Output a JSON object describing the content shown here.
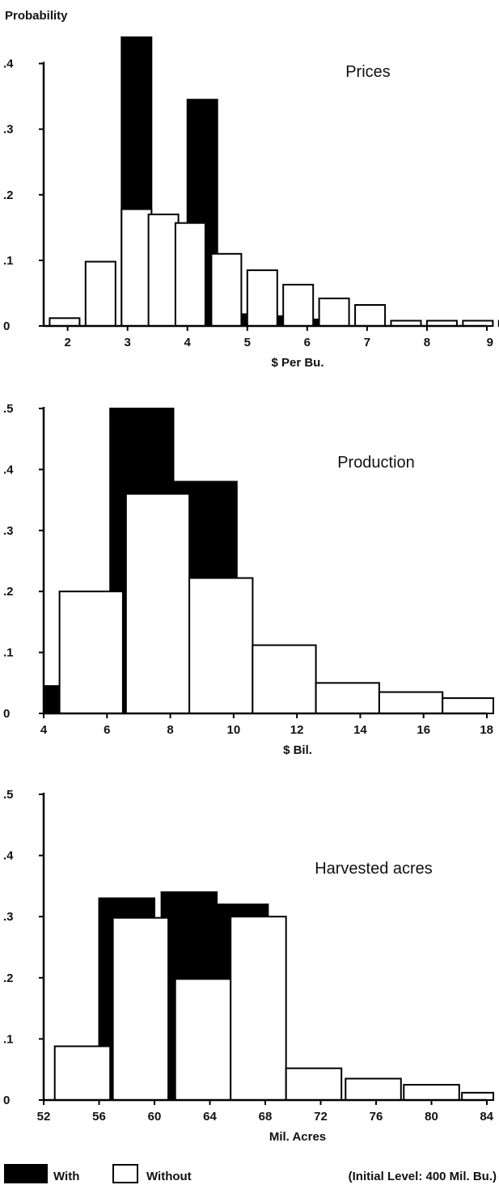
{
  "figure": {
    "ylabel": "Probability",
    "legend": {
      "with_label": "With",
      "without_label": "Without",
      "note": "(Initial Level: 400 Mil. Bu.)",
      "placement": "bottom-left"
    },
    "colors": {
      "with": "#000000",
      "without": "#ffffff",
      "outline": "#000000"
    }
  },
  "chart_data": [
    {
      "type": "bar",
      "title": "Prices",
      "xlabel": "$ Per Bu.",
      "xlim": [
        1.6,
        9
      ],
      "ylim": [
        0,
        0.45
      ],
      "xticks": [
        2,
        3,
        4,
        5,
        6,
        7,
        8,
        9
      ],
      "xtick_labels": [
        "2",
        "3",
        "4",
        "5",
        "6",
        "7",
        "8",
        "9"
      ],
      "yticks": [
        0,
        0.1,
        0.2,
        0.3,
        0.4
      ],
      "ytick_labels": [
        "0",
        ".1",
        ".2",
        ".3",
        ".4"
      ],
      "bin_width": 0.5,
      "series": [
        {
          "name": "With",
          "bins": [
            [
              2.9,
              0.44
            ],
            [
              3.5,
              0.155
            ],
            [
              4.0,
              0.345
            ],
            [
              4.6,
              0.018
            ],
            [
              5.2,
              0.015
            ],
            [
              5.8,
              0.01
            ]
          ]
        },
        {
          "name": "Without",
          "bins": [
            [
              1.7,
              0.012
            ],
            [
              2.3,
              0.098
            ],
            [
              2.9,
              0.178
            ],
            [
              3.35,
              0.17
            ],
            [
              3.8,
              0.157
            ],
            [
              4.4,
              0.11
            ],
            [
              5.0,
              0.085
            ],
            [
              5.6,
              0.063
            ],
            [
              6.2,
              0.042
            ],
            [
              6.8,
              0.032
            ],
            [
              7.4,
              0.008
            ],
            [
              8.0,
              0.008
            ],
            [
              8.6,
              0.008
            ],
            [
              9.2,
              0.008
            ],
            [
              9.8,
              0.008
            ]
          ]
        }
      ]
    },
    {
      "type": "bar",
      "title": "Production",
      "xlabel": "$ Bil.",
      "xlim": [
        4,
        18
      ],
      "ylim": [
        0,
        0.5
      ],
      "xticks": [
        4,
        6,
        8,
        10,
        12,
        14,
        16,
        18
      ],
      "xtick_labels": [
        "4",
        "6",
        "8",
        "10",
        "12",
        "14",
        "16",
        "18"
      ],
      "yticks": [
        0,
        0.1,
        0.2,
        0.3,
        0.4,
        0.5
      ],
      "ytick_labels": [
        "0",
        ".1",
        ".2",
        ".3",
        ".4",
        ".5"
      ],
      "bin_width": 2,
      "series": [
        {
          "name": "With",
          "bins": [
            [
              4.0,
              0.045
            ],
            [
              6.1,
              0.5
            ],
            [
              8.1,
              0.38
            ],
            [
              10.1,
              0.048
            ],
            [
              12.1,
              0.025
            ]
          ]
        },
        {
          "name": "Without",
          "bins": [
            [
              4.5,
              0.2
            ],
            [
              6.6,
              0.36
            ],
            [
              8.6,
              0.222
            ],
            [
              10.6,
              0.112
            ],
            [
              12.6,
              0.05
            ],
            [
              14.6,
              0.035
            ],
            [
              16.6,
              0.025
            ]
          ]
        }
      ]
    },
    {
      "type": "bar",
      "title": "Harvested acres",
      "xlabel": "Mil. Acres",
      "xlim": [
        52,
        84
      ],
      "ylim": [
        0,
        0.5
      ],
      "xticks": [
        52,
        56,
        60,
        64,
        68,
        72,
        76,
        80,
        84
      ],
      "xtick_labels": [
        "52",
        "56",
        "60",
        "64",
        "68",
        "72",
        "76",
        "80",
        "84"
      ],
      "yticks": [
        0,
        0.1,
        0.2,
        0.3,
        0.4,
        0.5
      ],
      "ytick_labels": [
        "0",
        ".1",
        ".2",
        ".3",
        ".4",
        ".5"
      ],
      "bin_width": 4,
      "series": [
        {
          "name": "With",
          "bins": [
            [
              56.0,
              0.33
            ],
            [
              60.5,
              0.34
            ],
            [
              64.2,
              0.32
            ],
            [
              68.0,
              0.012
            ]
          ]
        },
        {
          "name": "Without",
          "bins": [
            [
              52.8,
              0.088
            ],
            [
              57.0,
              0.298
            ],
            [
              61.5,
              0.198
            ],
            [
              65.5,
              0.3
            ],
            [
              69.5,
              0.052
            ],
            [
              73.8,
              0.035
            ],
            [
              78.0,
              0.025
            ],
            [
              82.2,
              0.012
            ]
          ]
        }
      ]
    }
  ]
}
